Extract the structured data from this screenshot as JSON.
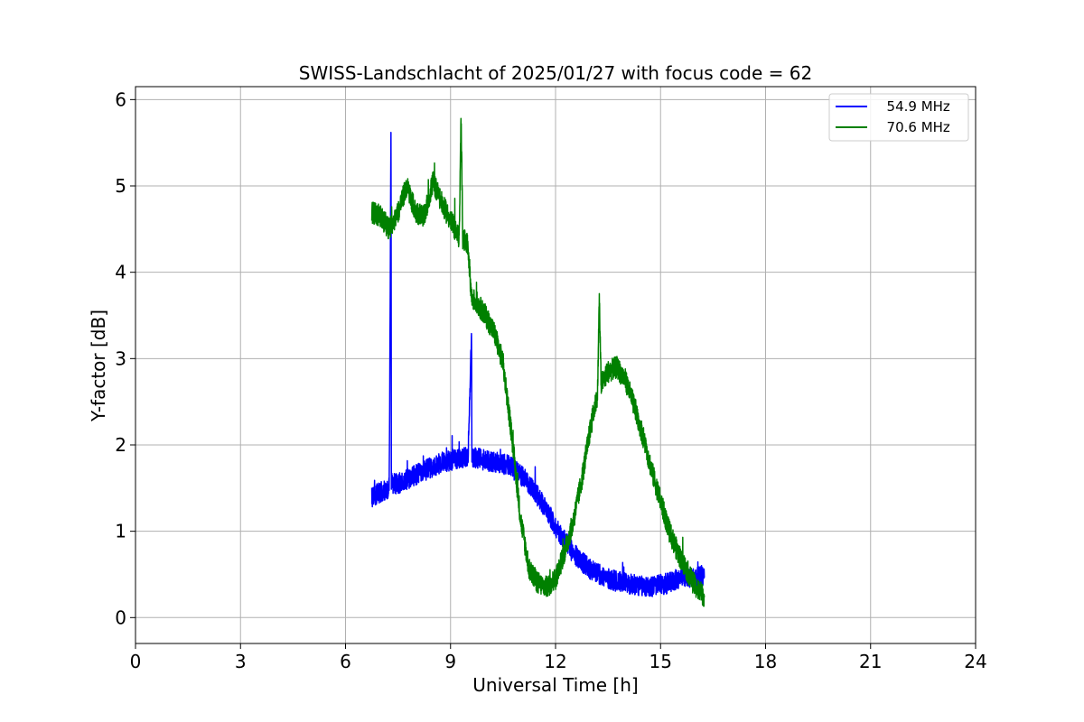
{
  "chart_data": {
    "type": "line",
    "title": "SWISS-Landschlacht of 2025/01/27 with focus code = 62",
    "xlabel": "Universal Time [h]",
    "ylabel": "Y-factor [dB]",
    "xlim": [
      0,
      24
    ],
    "ylim": [
      -0.3,
      6.15
    ],
    "xticks": [
      0,
      3,
      6,
      9,
      12,
      15,
      18,
      21,
      24
    ],
    "yticks": [
      0,
      1,
      2,
      3,
      4,
      5,
      6
    ],
    "grid": true,
    "legend_position": "top-right",
    "series": [
      {
        "name": "  54.9 MHz",
        "color": "#0000ff",
        "noise": 0.12,
        "x": [
          6.75,
          7.0,
          7.25,
          7.3,
          7.31,
          7.35,
          7.5,
          7.75,
          8.0,
          8.25,
          8.5,
          8.75,
          9.0,
          9.25,
          9.5,
          9.6,
          9.61,
          9.65,
          9.75,
          10.0,
          10.25,
          10.5,
          10.75,
          11.0,
          11.25,
          11.5,
          11.75,
          12.0,
          12.25,
          12.5,
          12.75,
          13.0,
          13.25,
          13.5,
          13.75,
          14.0,
          14.25,
          14.5,
          14.75,
          15.0,
          15.25,
          15.5,
          15.75,
          16.0,
          16.25
        ],
        "y": [
          1.4,
          1.45,
          1.5,
          5.8,
          1.55,
          1.55,
          1.55,
          1.6,
          1.65,
          1.7,
          1.75,
          1.8,
          1.82,
          1.85,
          1.85,
          3.3,
          1.85,
          1.85,
          1.85,
          1.82,
          1.8,
          1.78,
          1.75,
          1.65,
          1.55,
          1.4,
          1.25,
          1.05,
          0.9,
          0.75,
          0.65,
          0.55,
          0.5,
          0.45,
          0.42,
          0.4,
          0.38,
          0.36,
          0.36,
          0.38,
          0.4,
          0.45,
          0.48,
          0.45,
          0.5
        ]
      },
      {
        "name": "  70.6 MHz",
        "color": "#008000",
        "noise": 0.13,
        "x": [
          6.75,
          7.0,
          7.25,
          7.5,
          7.75,
          8.0,
          8.25,
          8.5,
          8.75,
          9.0,
          9.25,
          9.3,
          9.35,
          9.5,
          9.6,
          9.75,
          10.0,
          10.25,
          10.5,
          10.75,
          11.0,
          11.25,
          11.5,
          11.75,
          12.0,
          12.25,
          12.5,
          12.75,
          13.0,
          13.2,
          13.25,
          13.3,
          13.5,
          13.75,
          14.0,
          14.25,
          14.5,
          14.75,
          15.0,
          15.25,
          15.5,
          15.75,
          16.0,
          16.25
        ],
        "y": [
          4.7,
          4.65,
          4.5,
          4.7,
          5.0,
          4.7,
          4.65,
          5.05,
          4.8,
          4.6,
          4.4,
          5.8,
          4.4,
          4.3,
          3.7,
          3.65,
          3.5,
          3.3,
          2.95,
          2.1,
          1.15,
          0.55,
          0.4,
          0.35,
          0.45,
          0.75,
          1.1,
          1.6,
          2.2,
          2.6,
          3.7,
          2.7,
          2.85,
          2.9,
          2.75,
          2.45,
          2.1,
          1.7,
          1.35,
          1.0,
          0.75,
          0.55,
          0.35,
          0.25
        ]
      }
    ]
  }
}
